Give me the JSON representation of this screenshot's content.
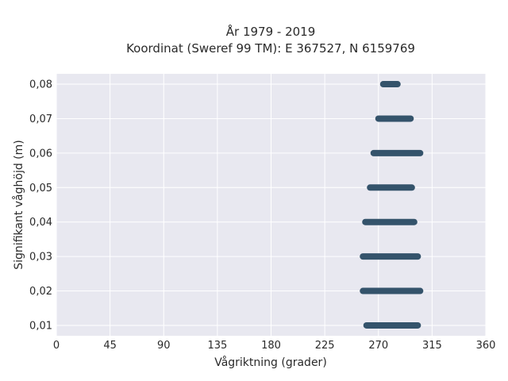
{
  "chart_data": {
    "type": "scatter",
    "title": "År 1979 - 2019",
    "subtitle": "Koordinat (Sweref 99 TM): E 367527, N 6159769",
    "xlabel": "Vågriktning (grader)",
    "ylabel": "Signifikant våghöjd (m)",
    "xlim": [
      0,
      360
    ],
    "ylim": [
      0.007,
      0.083
    ],
    "xticks": [
      "0",
      "45",
      "90",
      "135",
      "180",
      "225",
      "270",
      "315",
      "360"
    ],
    "yticks": [
      "0,01",
      "0,02",
      "0,03",
      "0,04",
      "0,05",
      "0,06",
      "0,07",
      "0,08"
    ],
    "grid": true,
    "marker_color": "#34536b",
    "plot_background": "#e8e8f0",
    "series": [
      {
        "points": [
          {
            "y": 0.01,
            "x_from": 260,
            "x_to": 303
          },
          {
            "y": 0.02,
            "x_from": 257,
            "x_to": 305
          },
          {
            "y": 0.03,
            "x_from": 257,
            "x_to": 303
          },
          {
            "y": 0.04,
            "x_from": 259,
            "x_to": 300
          },
          {
            "y": 0.05,
            "x_from": 263,
            "x_to": 298
          },
          {
            "y": 0.06,
            "x_from": 266,
            "x_to": 305
          },
          {
            "y": 0.07,
            "x_from": 270,
            "x_to": 297
          },
          {
            "y": 0.08,
            "x_from": 274,
            "x_to": 286
          }
        ]
      }
    ]
  }
}
